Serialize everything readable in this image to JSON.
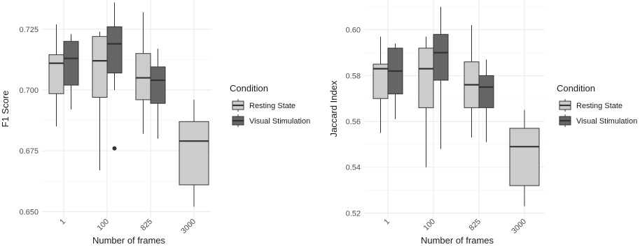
{
  "colors": {
    "Resting State": "#cccccc",
    "Visual Stimulation": "#666666"
  },
  "chart_data": [
    {
      "type": "boxplot",
      "xlabel": "Number of frames",
      "ylabel": "F1 Score",
      "categories": [
        "1",
        "100",
        "825",
        "3000"
      ],
      "yticks": [
        "0.650",
        "0.675",
        "0.700",
        "0.725"
      ],
      "ytick_values": [
        0.65,
        0.675,
        0.7,
        0.725
      ],
      "ylim": [
        0.6475,
        0.737
      ],
      "grid": true,
      "legend": {
        "title": "Condition",
        "position": "right",
        "labels": [
          "Resting State",
          "Visual Stimulation"
        ]
      },
      "series": [
        {
          "name": "Resting State",
          "boxes": [
            {
              "category": "1",
              "min": 0.685,
              "q1": 0.6985,
              "median": 0.711,
              "q3": 0.7145,
              "max": 0.727,
              "outliers": []
            },
            {
              "category": "100",
              "min": 0.667,
              "q1": 0.697,
              "median": 0.712,
              "q3": 0.722,
              "max": 0.724,
              "outliers": []
            },
            {
              "category": "825",
              "min": 0.682,
              "q1": 0.696,
              "median": 0.705,
              "q3": 0.715,
              "max": 0.732,
              "outliers": []
            },
            {
              "category": "3000",
              "min": 0.652,
              "q1": 0.661,
              "median": 0.679,
              "q3": 0.687,
              "max": 0.696,
              "outliers": []
            }
          ]
        },
        {
          "name": "Visual Stimulation",
          "boxes": [
            {
              "category": "1",
              "min": 0.692,
              "q1": 0.702,
              "median": 0.713,
              "q3": 0.72,
              "max": 0.723,
              "outliers": []
            },
            {
              "category": "100",
              "min": 0.7,
              "q1": 0.707,
              "median": 0.719,
              "q3": 0.726,
              "max": 0.736,
              "outliers": [
                0.676
              ]
            },
            {
              "category": "825",
              "min": 0.68,
              "q1": 0.6945,
              "median": 0.704,
              "q3": 0.7095,
              "max": 0.717,
              "outliers": []
            }
          ]
        }
      ]
    },
    {
      "type": "boxplot",
      "xlabel": "Number of frames",
      "ylabel": "Jaccard Index",
      "categories": [
        "1",
        "100",
        "825",
        "3000"
      ],
      "yticks": [
        "0.52",
        "0.54",
        "0.56",
        "0.58",
        "0.60"
      ],
      "ytick_values": [
        0.52,
        0.54,
        0.56,
        0.58,
        0.6
      ],
      "ylim": [
        0.518,
        0.613
      ],
      "grid": true,
      "legend": {
        "title": "Condition",
        "position": "right",
        "labels": [
          "Resting State",
          "Visual Stimulation"
        ]
      },
      "series": [
        {
          "name": "Resting State",
          "boxes": [
            {
              "category": "1",
              "min": 0.555,
              "q1": 0.57,
              "median": 0.583,
              "q3": 0.585,
              "max": 0.597,
              "outliers": []
            },
            {
              "category": "100",
              "min": 0.54,
              "q1": 0.566,
              "median": 0.583,
              "q3": 0.592,
              "max": 0.597,
              "outliers": []
            },
            {
              "category": "825",
              "min": 0.553,
              "q1": 0.566,
              "median": 0.576,
              "q3": 0.586,
              "max": 0.602,
              "outliers": []
            },
            {
              "category": "3000",
              "min": 0.523,
              "q1": 0.532,
              "median": 0.549,
              "q3": 0.557,
              "max": 0.565,
              "outliers": []
            }
          ]
        },
        {
          "name": "Visual Stimulation",
          "boxes": [
            {
              "category": "1",
              "min": 0.561,
              "q1": 0.572,
              "median": 0.582,
              "q3": 0.592,
              "max": 0.594,
              "outliers": []
            },
            {
              "category": "100",
              "min": 0.548,
              "q1": 0.578,
              "median": 0.59,
              "q3": 0.598,
              "max": 0.61,
              "outliers": []
            },
            {
              "category": "825",
              "min": 0.551,
              "q1": 0.566,
              "median": 0.575,
              "q3": 0.58,
              "max": 0.587,
              "outliers": []
            }
          ]
        }
      ]
    }
  ]
}
